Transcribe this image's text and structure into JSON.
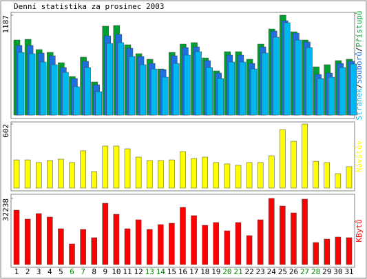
{
  "title": "Denní statistika za prosinec 2003",
  "legend_separator": "/",
  "categories": [
    "1",
    "2",
    "3",
    "4",
    "5",
    "6",
    "7",
    "8",
    "9",
    "10",
    "11",
    "12",
    "13",
    "14",
    "15",
    "16",
    "17",
    "18",
    "19",
    "20",
    "21",
    "22",
    "23",
    "24",
    "25",
    "26",
    "27",
    "28",
    "29",
    "30",
    "31"
  ],
  "category_colors": [
    "#000000",
    "#000000",
    "#000000",
    "#000000",
    "#000000",
    "#008800",
    "#008800",
    "#000000",
    "#000000",
    "#000000",
    "#000000",
    "#000000",
    "#008800",
    "#008800",
    "#000000",
    "#000000",
    "#000000",
    "#000000",
    "#000000",
    "#008800",
    "#008800",
    "#000000",
    "#000000",
    "#000000",
    "#000000",
    "#000000",
    "#008800",
    "#008800",
    "#000000",
    "#000000",
    "#000000"
  ],
  "chart_data": [
    {
      "type": "bar",
      "ylim": [
        0,
        1187
      ],
      "yticks": [
        1187
      ],
      "series": [
        {
          "name": "Přístupů",
          "color": "#00a030",
          "values": [
            892,
            900,
            778,
            745,
            622,
            458,
            688,
            393,
            1056,
            1064,
            835,
            729,
            663,
            548,
            745,
            843,
            860,
            679,
            524,
            753,
            753,
            663,
            843,
            1023,
            1187,
            990,
            892,
            573,
            598,
            647,
            663
          ]
        },
        {
          "name": "Souborů",
          "color": "#1e6fe0",
          "values": [
            827,
            827,
            737,
            704,
            565,
            434,
            639,
            360,
            941,
            958,
            794,
            696,
            614,
            540,
            704,
            802,
            810,
            647,
            499,
            712,
            712,
            614,
            810,
            999,
            1121,
            974,
            868,
            483,
            499,
            614,
            639
          ]
        },
        {
          "name": "Stránek",
          "color": "#00b8f0",
          "values": [
            745,
            729,
            630,
            598,
            508,
            336,
            565,
            278,
            851,
            860,
            696,
            598,
            548,
            450,
            614,
            712,
            753,
            565,
            434,
            630,
            630,
            548,
            737,
            925,
            1097,
            892,
            802,
            434,
            450,
            565,
            606
          ]
        }
      ]
    },
    {
      "type": "bar",
      "ylim": [
        0,
        602
      ],
      "yticks": [
        602
      ],
      "series": [
        {
          "name": "Návštěv",
          "color": "#ffff00",
          "values": [
            265,
            265,
            240,
            259,
            272,
            240,
            350,
            155,
            395,
            395,
            369,
            291,
            259,
            259,
            265,
            343,
            278,
            291,
            240,
            227,
            214,
            240,
            240,
            304,
            550,
            440,
            602,
            252,
            240,
            136,
            201
          ]
        }
      ]
    },
    {
      "type": "bar",
      "ylim": [
        0,
        32238
      ],
      "yticks": [
        32238
      ],
      "series": [
        {
          "name": "KBytů",
          "color": "#ff0000",
          "values": [
            26529,
            22163,
            24850,
            23170,
            17462,
            10074,
            17126,
            13096,
            29886,
            24513,
            17462,
            21827,
            17126,
            19476,
            20148,
            27871,
            23842,
            19141,
            20484,
            16454,
            20484,
            14104,
            21827,
            32238,
            28543,
            25185,
            31902,
            10746,
            12425,
            13432,
            13096
          ]
        }
      ]
    }
  ]
}
